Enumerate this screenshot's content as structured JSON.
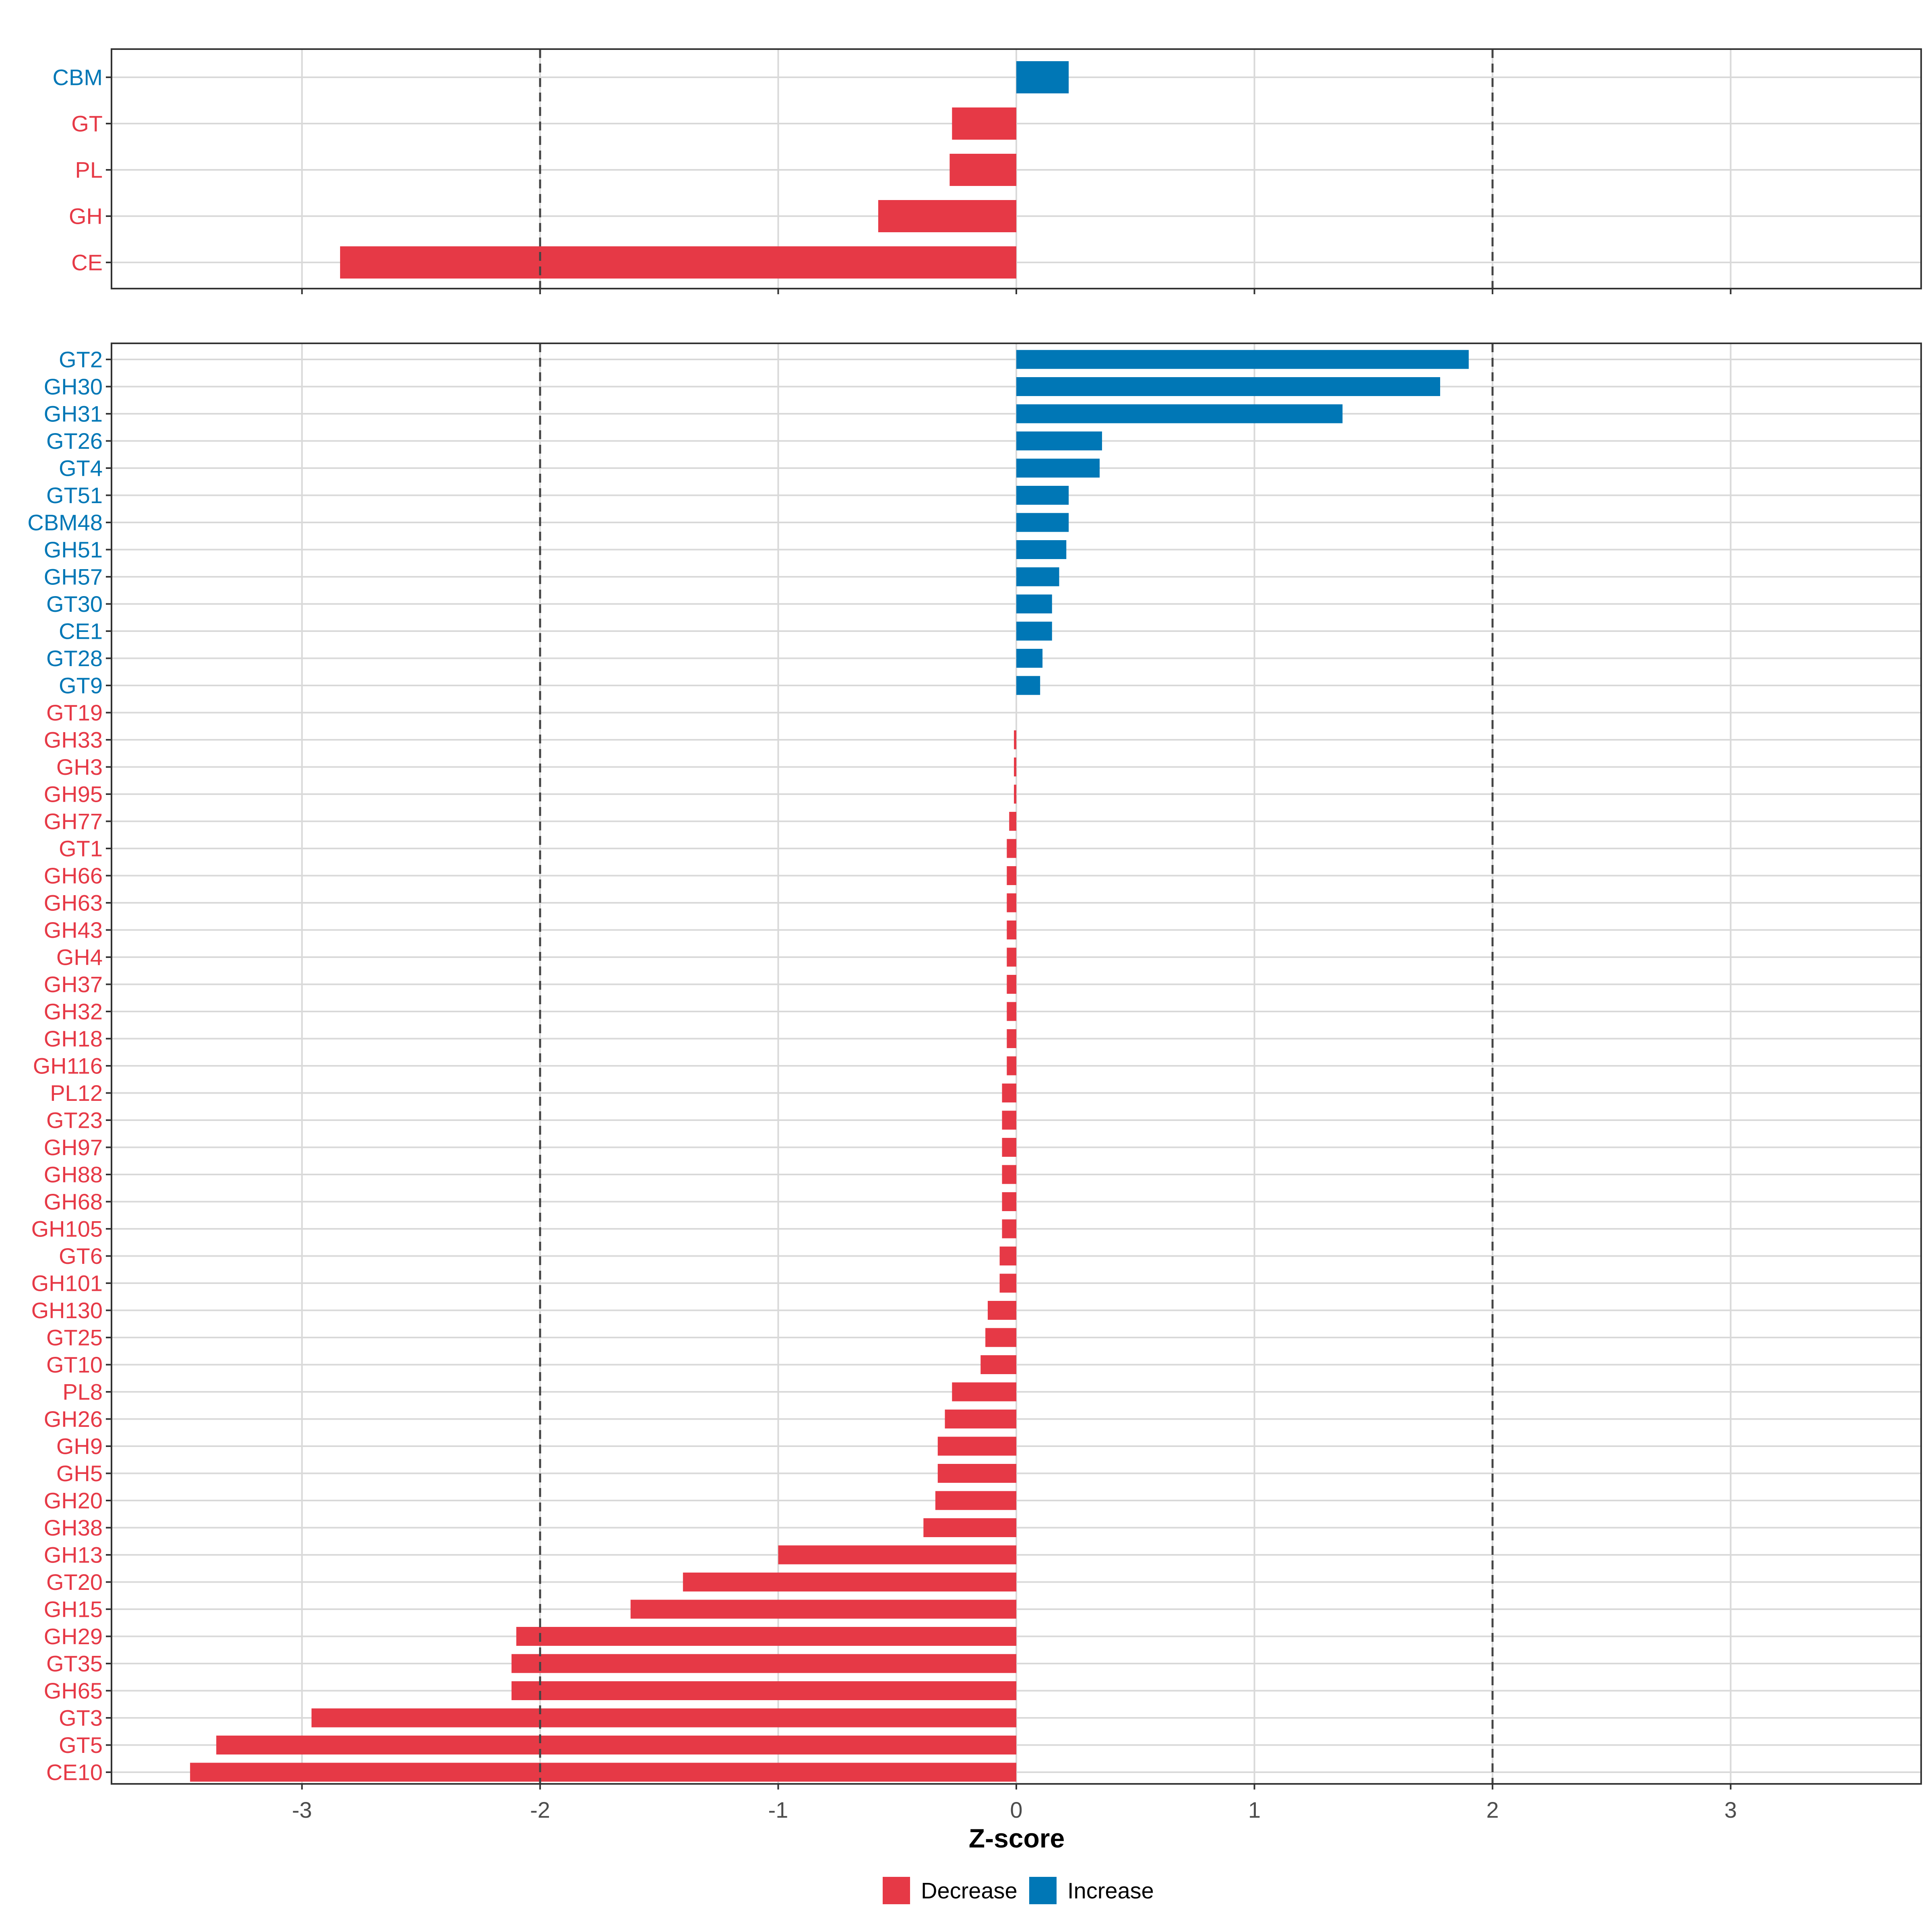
{
  "colors": {
    "decrease": "#e63946",
    "increase": "#0077b6",
    "grid": "#d9d9d9",
    "panel_border": "#333333",
    "reference_line": "#444444",
    "tick_text": "#4d4d4d"
  },
  "legend": {
    "position": "bottom-center",
    "items": [
      {
        "key": "decrease",
        "label": "Decrease"
      },
      {
        "key": "increase",
        "label": "Increase"
      }
    ]
  },
  "chart_data": [
    {
      "type": "bar",
      "orientation": "horizontal",
      "panel": "top",
      "xlabel": "",
      "xlim": [
        -3.8,
        3.8
      ],
      "x_ticks": [
        -3,
        -2,
        -1,
        0,
        1,
        2,
        3
      ],
      "show_x_tick_labels": false,
      "reference_lines": [
        -2,
        2
      ],
      "grid": true,
      "categories": [
        "CBM",
        "GT",
        "PL",
        "GH",
        "CE"
      ],
      "values": [
        0.22,
        -0.27,
        -0.28,
        -0.58,
        -2.84
      ],
      "direction": [
        "increase",
        "decrease",
        "decrease",
        "decrease",
        "decrease"
      ]
    },
    {
      "type": "bar",
      "orientation": "horizontal",
      "panel": "bottom",
      "xlabel": "Z-score",
      "xlim": [
        -3.8,
        3.8
      ],
      "x_ticks": [
        -3,
        -2,
        -1,
        0,
        1,
        2,
        3
      ],
      "x_tick_labels": [
        "-3",
        "-2",
        "-1",
        "0",
        "1",
        "2",
        "3"
      ],
      "show_x_tick_labels": true,
      "reference_lines": [
        -2,
        2
      ],
      "grid": true,
      "categories": [
        "GT2",
        "GH30",
        "GH31",
        "GT26",
        "GT4",
        "GT51",
        "CBM48",
        "GH51",
        "GH57",
        "GT30",
        "CE1",
        "GT28",
        "GT9",
        "GT19",
        "GH33",
        "GH3",
        "GH95",
        "GH77",
        "GT1",
        "GH66",
        "GH63",
        "GH43",
        "GH4",
        "GH37",
        "GH32",
        "GH18",
        "GH116",
        "PL12",
        "GT23",
        "GH97",
        "GH88",
        "GH68",
        "GH105",
        "GT6",
        "GH101",
        "GH130",
        "GT25",
        "GT10",
        "PL8",
        "GH26",
        "GH9",
        "GH5",
        "GH20",
        "GH38",
        "GH13",
        "GT20",
        "GH15",
        "GH29",
        "GT35",
        "GH65",
        "GT3",
        "GT5",
        "CE10"
      ],
      "values": [
        1.9,
        1.78,
        1.37,
        0.36,
        0.35,
        0.22,
        0.22,
        0.21,
        0.18,
        0.15,
        0.15,
        0.11,
        0.1,
        0.0,
        -0.01,
        -0.01,
        -0.01,
        -0.03,
        -0.04,
        -0.04,
        -0.04,
        -0.04,
        -0.04,
        -0.04,
        -0.04,
        -0.04,
        -0.04,
        -0.06,
        -0.06,
        -0.06,
        -0.06,
        -0.06,
        -0.06,
        -0.07,
        -0.07,
        -0.12,
        -0.13,
        -0.15,
        -0.27,
        -0.3,
        -0.33,
        -0.33,
        -0.34,
        -0.39,
        -1.0,
        -1.4,
        -1.62,
        -2.1,
        -2.12,
        -2.12,
        -2.96,
        -3.36,
        -3.47
      ],
      "direction": [
        "increase",
        "increase",
        "increase",
        "increase",
        "increase",
        "increase",
        "increase",
        "increase",
        "increase",
        "increase",
        "increase",
        "increase",
        "increase",
        "decrease",
        "decrease",
        "decrease",
        "decrease",
        "decrease",
        "decrease",
        "decrease",
        "decrease",
        "decrease",
        "decrease",
        "decrease",
        "decrease",
        "decrease",
        "decrease",
        "decrease",
        "decrease",
        "decrease",
        "decrease",
        "decrease",
        "decrease",
        "decrease",
        "decrease",
        "decrease",
        "decrease",
        "decrease",
        "decrease",
        "decrease",
        "decrease",
        "decrease",
        "decrease",
        "decrease",
        "decrease",
        "decrease",
        "decrease",
        "decrease",
        "decrease",
        "decrease",
        "decrease",
        "decrease",
        "decrease"
      ]
    }
  ]
}
